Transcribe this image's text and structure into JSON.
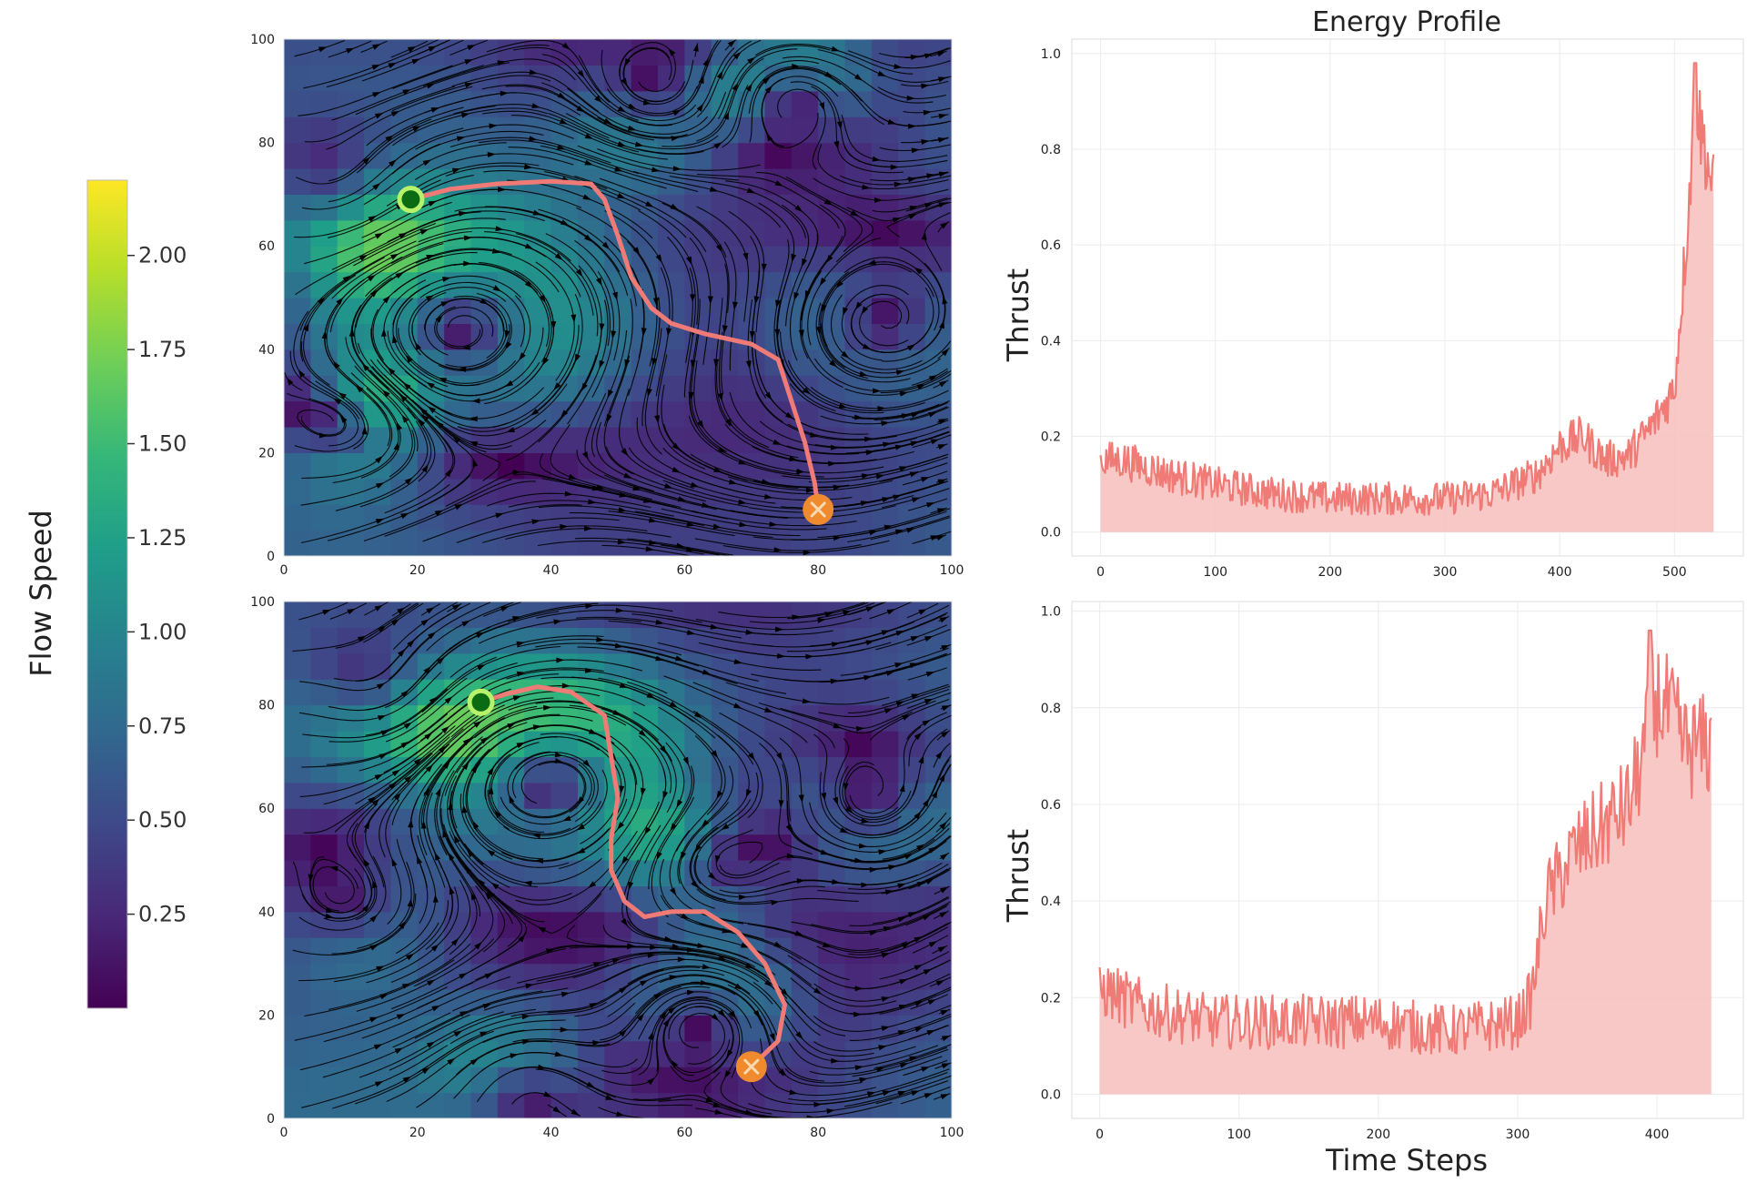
{
  "colors": {
    "trajectory": "#f07b76",
    "fill": "#f7c2c1",
    "start_outer": "#b7f26b",
    "start_inner": "#0b6b13",
    "goal": "#f08a2e",
    "streamline": "#000000",
    "grid": "#ececec"
  },
  "colorbar": {
    "label": "Flow Speed",
    "ticks": [
      "0.25",
      "0.50",
      "0.75",
      "1.00",
      "1.25",
      "1.50",
      "1.75",
      "2.00"
    ],
    "tick_values": [
      0.25,
      0.5,
      0.75,
      1.0,
      1.25,
      1.5,
      1.75,
      2.0
    ],
    "range": [
      0.0,
      2.2
    ],
    "colormap": [
      "#440154",
      "#482878",
      "#3e4989",
      "#31688e",
      "#26828e",
      "#1f9e89",
      "#35b779",
      "#6ece58",
      "#b5de2b",
      "#fde725"
    ]
  },
  "chart_data": [
    {
      "type": "heatmap",
      "name": "flow field 1 (streamplot with trajectory)",
      "x_ticks": [
        "0",
        "20",
        "40",
        "60",
        "80",
        "100"
      ],
      "y_ticks": [
        "0",
        "20",
        "40",
        "60",
        "80",
        "100"
      ],
      "xlim": [
        0,
        100
      ],
      "ylim": [
        0,
        100
      ],
      "start": [
        19,
        69
      ],
      "goal": [
        80,
        9
      ],
      "path": [
        [
          19,
          69
        ],
        [
          25,
          71
        ],
        [
          32,
          72
        ],
        [
          40,
          72.5
        ],
        [
          46,
          72
        ],
        [
          48,
          69
        ],
        [
          50,
          62
        ],
        [
          52,
          54
        ],
        [
          55,
          48
        ],
        [
          58,
          45
        ],
        [
          63,
          43
        ],
        [
          70,
          41
        ],
        [
          74,
          38
        ],
        [
          76,
          30
        ],
        [
          78,
          22
        ],
        [
          79.5,
          14
        ],
        [
          80,
          9
        ]
      ],
      "vortices": [
        {
          "x": 26,
          "y": 45,
          "s": 1.8,
          "r": 14,
          "cw": true
        },
        {
          "x": 10,
          "y": 25,
          "s": 1.0,
          "r": 7,
          "cw": false
        },
        {
          "x": 76,
          "y": 90,
          "s": 1.2,
          "r": 8,
          "cw": true
        },
        {
          "x": 55,
          "y": 88,
          "s": 0.8,
          "r": 9,
          "cw": false
        },
        {
          "x": 90,
          "y": 45,
          "s": 1.0,
          "r": 10,
          "cw": false
        },
        {
          "x": 8,
          "y": 68,
          "s": 0.9,
          "r": 9,
          "cw": false
        }
      ],
      "base_flow": [
        0.35,
        0.0
      ]
    },
    {
      "type": "heatmap",
      "name": "flow field 2 (streamplot with trajectory)",
      "x_ticks": [
        "0",
        "20",
        "40",
        "60",
        "80",
        "100"
      ],
      "y_ticks": [
        "0",
        "20",
        "40",
        "60",
        "80",
        "100"
      ],
      "xlim": [
        0,
        100
      ],
      "ylim": [
        0,
        100
      ],
      "start": [
        29.5,
        80.5
      ],
      "goal": [
        70,
        10
      ],
      "path": [
        [
          29.5,
          80.5
        ],
        [
          33,
          82
        ],
        [
          38,
          83.5
        ],
        [
          43,
          82.5
        ],
        [
          48,
          78
        ],
        [
          49,
          70
        ],
        [
          50,
          62
        ],
        [
          49,
          54
        ],
        [
          49,
          48
        ],
        [
          51,
          42
        ],
        [
          54,
          39
        ],
        [
          58,
          40
        ],
        [
          63,
          40
        ],
        [
          68,
          36
        ],
        [
          72,
          30
        ],
        [
          75,
          22
        ],
        [
          74,
          15
        ],
        [
          70,
          10
        ]
      ],
      "vortices": [
        {
          "x": 40,
          "y": 67,
          "s": 1.8,
          "r": 12,
          "cw": true
        },
        {
          "x": 64,
          "y": 50,
          "s": 1.0,
          "r": 8,
          "cw": false
        },
        {
          "x": 63,
          "y": 20,
          "s": 1.1,
          "r": 9,
          "cw": true
        },
        {
          "x": 88,
          "y": 60,
          "s": 1.0,
          "r": 9,
          "cw": false
        },
        {
          "x": 15,
          "y": 80,
          "s": 0.8,
          "r": 8,
          "cw": false
        },
        {
          "x": 35,
          "y": 8,
          "s": 0.8,
          "r": 8,
          "cw": true
        },
        {
          "x": 10,
          "y": 40,
          "s": 0.7,
          "r": 9,
          "cw": false
        }
      ],
      "base_flow": [
        0.4,
        0.05
      ]
    },
    {
      "type": "area",
      "name": "energy profile 1",
      "title": "Energy Profile",
      "ylabel": "Thrust",
      "xlabel": "",
      "x_ticks": [
        "0",
        "100",
        "200",
        "300",
        "400",
        "500"
      ],
      "y_ticks": [
        "0.0",
        "0.2",
        "0.4",
        "0.6",
        "0.8",
        "1.0"
      ],
      "xlim": [
        -25,
        560
      ],
      "ylim": [
        -0.05,
        1.03
      ],
      "n_steps": 535,
      "profile_x": [
        0,
        20,
        60,
        100,
        150,
        200,
        250,
        300,
        340,
        380,
        400,
        420,
        440,
        460,
        480,
        500,
        510,
        518,
        525,
        535
      ],
      "profile_y": [
        0.15,
        0.15,
        0.12,
        0.1,
        0.08,
        0.07,
        0.07,
        0.07,
        0.08,
        0.12,
        0.18,
        0.2,
        0.15,
        0.16,
        0.22,
        0.3,
        0.6,
        0.9,
        0.82,
        0.7
      ],
      "noise": 0.05,
      "peak": [
        518,
        0.98
      ]
    },
    {
      "type": "area",
      "name": "energy profile 2",
      "title": "",
      "ylabel": "Thrust",
      "xlabel": "Time Steps",
      "x_ticks": [
        "0",
        "100",
        "200",
        "300",
        "400"
      ],
      "y_ticks": [
        "0.0",
        "0.2",
        "0.4",
        "0.6",
        "0.8",
        "1.0"
      ],
      "xlim": [
        -20,
        462
      ],
      "ylim": [
        -0.05,
        1.02
      ],
      "n_steps": 440,
      "profile_x": [
        0,
        30,
        80,
        150,
        200,
        250,
        300,
        310,
        320,
        340,
        360,
        380,
        390,
        400,
        410,
        420,
        440
      ],
      "profile_y": [
        0.22,
        0.18,
        0.15,
        0.15,
        0.15,
        0.13,
        0.15,
        0.2,
        0.4,
        0.5,
        0.55,
        0.6,
        0.7,
        0.82,
        0.78,
        0.72,
        0.72
      ],
      "noise": 0.07,
      "peak": [
        395,
        0.96
      ]
    }
  ]
}
